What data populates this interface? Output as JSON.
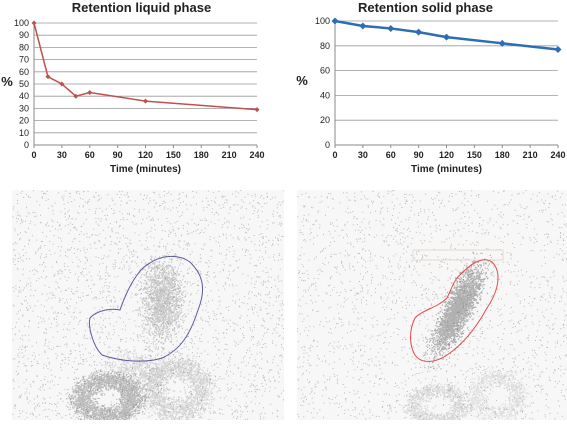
{
  "chart_data": [
    {
      "type": "line",
      "title": "Retention liquid phase",
      "xlabel": "Time (minutes)",
      "ylabel": "%",
      "xlim": [
        0,
        240
      ],
      "ylim": [
        0,
        100
      ],
      "xticks": [
        0,
        30,
        60,
        90,
        120,
        150,
        180,
        210,
        240
      ],
      "yticks": [
        0,
        10,
        20,
        30,
        40,
        50,
        60,
        70,
        80,
        90,
        100
      ],
      "grid": "horizontal",
      "color": "#c0504d",
      "marker": "diamond",
      "series": [
        {
          "x": [
            0,
            15,
            30,
            45,
            60,
            120,
            240
          ],
          "y": [
            100,
            56,
            50,
            40,
            43,
            36,
            29
          ]
        }
      ]
    },
    {
      "type": "line",
      "title": "Retention solid phase",
      "xlabel": "Time (minutes)",
      "ylabel": "%",
      "xlim": [
        0,
        240
      ],
      "ylim": [
        0,
        100
      ],
      "xticks": [
        0,
        30,
        60,
        90,
        120,
        150,
        180,
        210,
        240
      ],
      "yticks": [
        0,
        20,
        40,
        60,
        80,
        100
      ],
      "grid": "horizontal",
      "color": "#2e6db3",
      "marker": "diamond",
      "series": [
        {
          "x": [
            0,
            30,
            60,
            90,
            120,
            180,
            240
          ],
          "y": [
            100,
            96,
            94,
            91,
            87,
            82,
            77
          ]
        }
      ]
    }
  ],
  "images": [
    {
      "name": "liquid-phase-scintigram",
      "roi_color": "#5b5b9e"
    },
    {
      "name": "solid-phase-scintigram",
      "roi_color": "#e14b4b"
    }
  ]
}
